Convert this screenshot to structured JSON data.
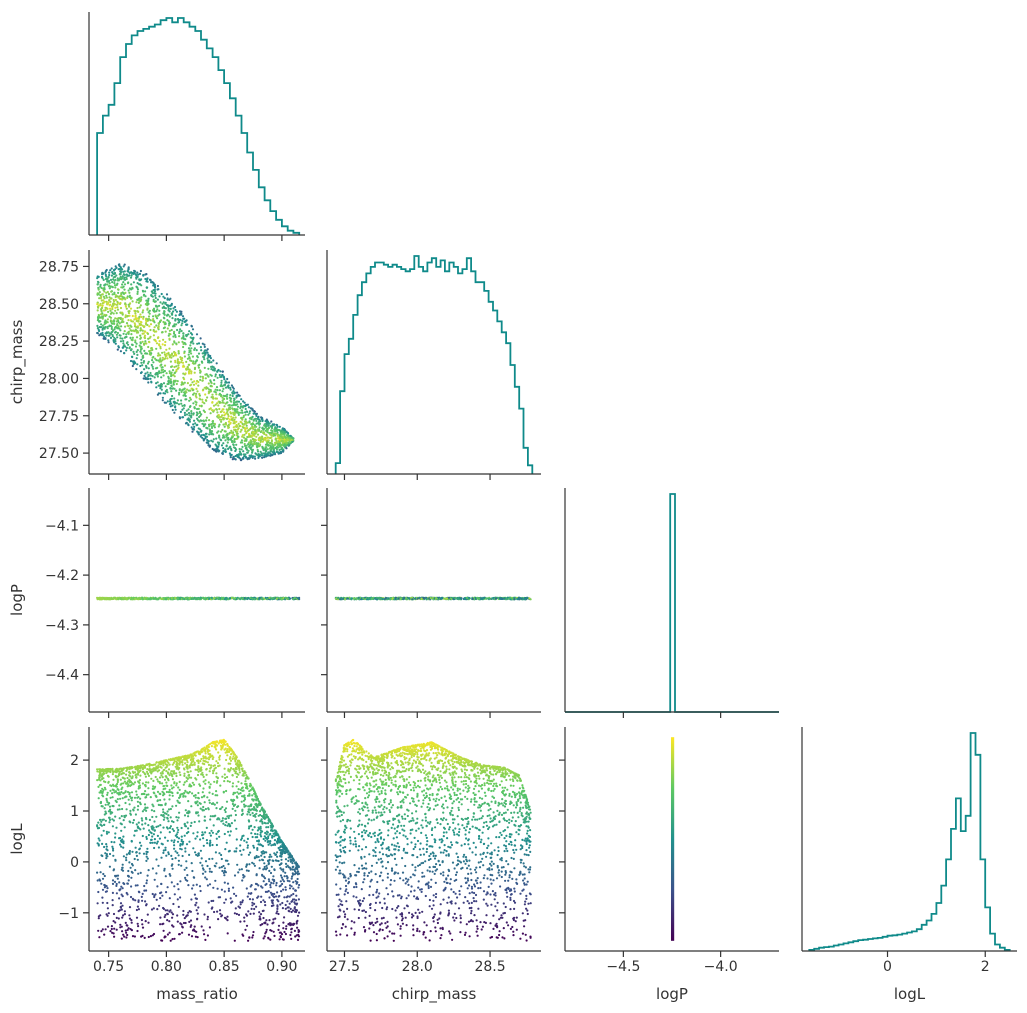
{
  "figure": {
    "type": "corner_plot"
  },
  "colors": {
    "hist": "#0f8a8a",
    "axis": "#333333",
    "viridis": [
      "#440154",
      "#3b528b",
      "#21918c",
      "#5ec962",
      "#fde725"
    ]
  },
  "chart_data": [
    {
      "type": "histogram",
      "panel": "mass_ratio",
      "xlabel": "mass_ratio",
      "xlim": [
        0.733,
        0.92
      ],
      "xticks": [
        "0.75",
        "0.80",
        "0.85",
        "0.90"
      ],
      "xtick_values": [
        0.75,
        0.8,
        0.85,
        0.9
      ],
      "bin_edges": [
        0.74,
        0.745,
        0.75,
        0.755,
        0.76,
        0.765,
        0.77,
        0.775,
        0.78,
        0.785,
        0.79,
        0.795,
        0.8,
        0.805,
        0.81,
        0.815,
        0.82,
        0.825,
        0.83,
        0.835,
        0.84,
        0.845,
        0.85,
        0.855,
        0.86,
        0.865,
        0.87,
        0.875,
        0.88,
        0.885,
        0.89,
        0.895,
        0.9,
        0.905,
        0.91,
        0.915
      ],
      "counts": [
        0.47,
        0.55,
        0.6,
        0.7,
        0.82,
        0.88,
        0.92,
        0.94,
        0.95,
        0.96,
        0.97,
        0.99,
        1.0,
        0.98,
        1.0,
        0.98,
        0.96,
        0.94,
        0.9,
        0.86,
        0.82,
        0.76,
        0.7,
        0.63,
        0.55,
        0.47,
        0.38,
        0.3,
        0.22,
        0.16,
        0.11,
        0.07,
        0.04,
        0.02,
        0.01
      ],
      "y_relative": true
    },
    {
      "type": "scatter",
      "panel": "mass_ratio vs chirp_mass",
      "xlabel": "",
      "ylabel": "chirp_mass",
      "xlim": [
        0.733,
        0.92
      ],
      "ylim": [
        27.36,
        28.86
      ],
      "yticks": [
        "27.50",
        "27.75",
        "28.00",
        "28.25",
        "28.50",
        "28.75"
      ],
      "ytick_values": [
        27.5,
        27.75,
        28.0,
        28.25,
        28.5,
        28.75
      ],
      "color_by": "logL",
      "points_description_x": [
        0.74,
        0.76,
        0.78,
        0.8,
        0.82,
        0.84,
        0.86,
        0.88,
        0.9,
        0.91
      ],
      "upper_edge_y": [
        28.7,
        28.78,
        28.72,
        28.58,
        28.38,
        28.15,
        27.92,
        27.75,
        27.68,
        27.6
      ],
      "lower_edge_y": [
        28.3,
        28.18,
        28.0,
        27.82,
        27.66,
        27.52,
        27.45,
        27.46,
        27.5,
        27.58
      ]
    },
    {
      "type": "histogram",
      "panel": "chirp_mass",
      "xlabel": "chirp_mass",
      "xlim": [
        27.38,
        28.85
      ],
      "xticks": [
        "27.5",
        "28.0",
        "28.5"
      ],
      "xtick_values": [
        27.5,
        28.0,
        28.5
      ],
      "bin_edges": [
        27.44,
        27.47,
        27.5,
        27.53,
        27.56,
        27.59,
        27.62,
        27.65,
        27.68,
        27.71,
        27.74,
        27.77,
        27.8,
        27.83,
        27.86,
        27.89,
        27.92,
        27.95,
        27.98,
        28.01,
        28.04,
        28.07,
        28.1,
        28.13,
        28.16,
        28.19,
        28.22,
        28.25,
        28.28,
        28.31,
        28.34,
        28.37,
        28.4,
        28.43,
        28.46,
        28.49,
        28.52,
        28.55,
        28.58,
        28.61,
        28.64,
        28.67,
        28.7,
        28.73,
        28.76
      ],
      "counts": [
        0.05,
        0.38,
        0.55,
        0.62,
        0.73,
        0.82,
        0.88,
        0.92,
        0.95,
        0.97,
        0.97,
        0.96,
        0.95,
        0.96,
        0.95,
        0.94,
        0.93,
        0.94,
        1.0,
        0.95,
        0.93,
        0.97,
        0.99,
        0.95,
        0.98,
        0.93,
        0.97,
        0.95,
        0.92,
        0.94,
        0.99,
        0.93,
        0.88,
        0.88,
        0.84,
        0.79,
        0.75,
        0.7,
        0.65,
        0.6,
        0.5,
        0.4,
        0.3,
        0.12,
        0.04
      ],
      "y_relative": true
    },
    {
      "type": "scatter",
      "panel": "mass_ratio vs logP",
      "ylabel": "logP",
      "xlim": [
        0.733,
        0.92
      ],
      "ylim": [
        -4.475,
        -4.025
      ],
      "yticks": [
        "−4.4",
        "−4.3",
        "−4.2",
        "−4.1"
      ],
      "ytick_values": [
        -4.4,
        -4.3,
        -4.2,
        -4.1
      ],
      "constant_y": -4.247,
      "x_range": [
        0.74,
        0.915
      ],
      "color_by": "logL"
    },
    {
      "type": "scatter",
      "panel": "chirp_mass vs logP",
      "xlim": [
        27.38,
        28.85
      ],
      "ylim": [
        -4.475,
        -4.025
      ],
      "constant_y": -4.247,
      "x_range": [
        27.44,
        28.78
      ],
      "color_by": "logL"
    },
    {
      "type": "histogram",
      "panel": "logP",
      "xlabel": "logP",
      "xlim": [
        -4.8,
        -3.7
      ],
      "xticks": [
        "−4.5",
        "−4.0"
      ],
      "xtick_values": [
        -4.5,
        -4.0
      ],
      "spike_at": -4.247,
      "spike_width": 0.025,
      "y_relative": true
    },
    {
      "type": "scatter",
      "panel": "mass_ratio vs logL",
      "xlabel": "mass_ratio",
      "ylabel": "logL",
      "xlim": [
        0.733,
        0.92
      ],
      "xticks": [
        "0.75",
        "0.80",
        "0.85",
        "0.90"
      ],
      "xtick_values": [
        0.75,
        0.8,
        0.85,
        0.9
      ],
      "ylim": [
        -1.75,
        2.65
      ],
      "yticks": [
        "−1",
        "0",
        "1",
        "2"
      ],
      "ytick_values": [
        -1,
        0,
        1,
        2
      ],
      "upper_envelope_x": [
        0.74,
        0.76,
        0.78,
        0.8,
        0.82,
        0.83,
        0.84,
        0.85,
        0.86,
        0.87,
        0.88,
        0.9,
        0.915
      ],
      "upper_envelope_y": [
        1.82,
        1.83,
        1.9,
        2.0,
        2.1,
        2.2,
        2.35,
        2.4,
        2.1,
        1.7,
        1.2,
        0.4,
        -0.1
      ],
      "color_by": "logL"
    },
    {
      "type": "scatter",
      "panel": "chirp_mass vs logL",
      "xlabel": "chirp_mass",
      "xlim": [
        27.38,
        28.85
      ],
      "xticks": [
        "27.5",
        "28.0",
        "28.5"
      ],
      "xtick_values": [
        27.5,
        28.0,
        28.5
      ],
      "ylim": [
        -1.75,
        2.65
      ],
      "upper_envelope_x": [
        27.44,
        27.5,
        27.56,
        27.62,
        27.7,
        27.8,
        27.9,
        28.0,
        28.1,
        28.2,
        28.3,
        28.45,
        28.6,
        28.7,
        28.78
      ],
      "upper_envelope_y": [
        1.6,
        2.3,
        2.4,
        2.25,
        2.05,
        2.15,
        2.25,
        2.3,
        2.35,
        2.2,
        2.05,
        1.9,
        1.85,
        1.7,
        1.0
      ],
      "color_by": "logL"
    },
    {
      "type": "scatter",
      "panel": "logP vs logL",
      "xlabel": "logP",
      "xlim": [
        -4.8,
        -3.7
      ],
      "xticks": [
        "−4.5",
        "−4.0"
      ],
      "xtick_values": [
        -4.5,
        -4.0
      ],
      "ylim": [
        -1.75,
        2.65
      ],
      "constant_x": -4.247,
      "y_range": [
        -1.55,
        2.45
      ],
      "color_by": "logL"
    },
    {
      "type": "histogram",
      "panel": "logL",
      "xlabel": "logL",
      "xlim": [
        -1.75,
        2.65
      ],
      "xticks": [
        "0",
        "2"
      ],
      "xtick_values": [
        0,
        2
      ],
      "bin_edges": [
        -1.6,
        -1.5,
        -1.4,
        -1.3,
        -1.2,
        -1.1,
        -1.0,
        -0.9,
        -0.8,
        -0.7,
        -0.6,
        -0.5,
        -0.4,
        -0.3,
        -0.2,
        -0.1,
        0.0,
        0.1,
        0.2,
        0.3,
        0.4,
        0.5,
        0.6,
        0.7,
        0.8,
        0.9,
        1.0,
        1.1,
        1.2,
        1.3,
        1.4,
        1.5,
        1.6,
        1.7,
        1.8,
        1.9,
        2.0,
        2.1,
        2.2,
        2.3,
        2.4,
        2.5
      ],
      "counts": [
        0.005,
        0.01,
        0.015,
        0.018,
        0.02,
        0.025,
        0.03,
        0.035,
        0.04,
        0.045,
        0.05,
        0.052,
        0.055,
        0.058,
        0.06,
        0.065,
        0.07,
        0.072,
        0.075,
        0.08,
        0.085,
        0.09,
        0.1,
        0.12,
        0.14,
        0.17,
        0.22,
        0.3,
        0.42,
        0.56,
        0.7,
        0.55,
        0.62,
        1.0,
        0.9,
        0.42,
        0.2,
        0.08,
        0.03,
        0.015,
        0.005
      ],
      "y_relative": true
    }
  ]
}
